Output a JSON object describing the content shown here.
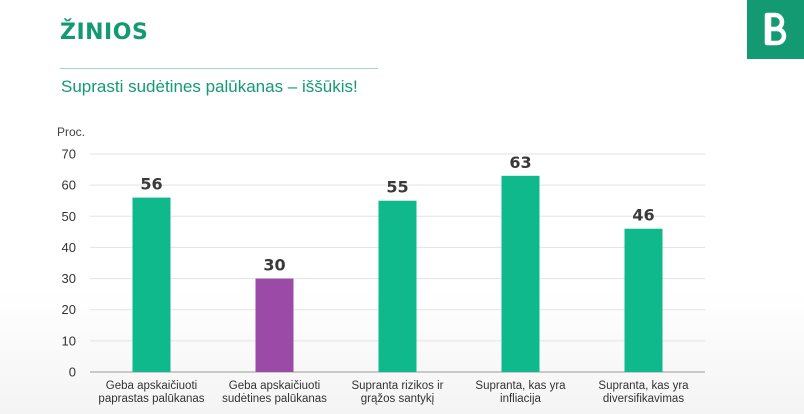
{
  "header": {
    "title": "ŽINIOS",
    "subtitle": "Suprasti sudėtines palūkanas – iššūkis!",
    "logo_icon": "bank-logo-icon",
    "accent_color": "#139a73"
  },
  "chart_data": {
    "type": "bar",
    "ylabel": "Proc.",
    "ylim": [
      0,
      70
    ],
    "yticks": [
      0,
      10,
      20,
      30,
      40,
      50,
      60,
      70
    ],
    "grid": true,
    "categories": [
      [
        "Geba apskaičiuoti",
        "paprastas palūkanas"
      ],
      [
        "Geba apskaičiuoti",
        "sudėtines palūkanas"
      ],
      [
        "Supranta rizikos ir",
        "grąžos santykį"
      ],
      [
        "Supranta, kas yra",
        "infliacija"
      ],
      [
        "Supranta, kas yra",
        "diversifikavimas"
      ]
    ],
    "values": [
      56,
      30,
      55,
      63,
      46
    ],
    "colors": [
      "#0fb98b",
      "#9b4aa8",
      "#0fb98b",
      "#0fb98b",
      "#0fb98b"
    ]
  }
}
